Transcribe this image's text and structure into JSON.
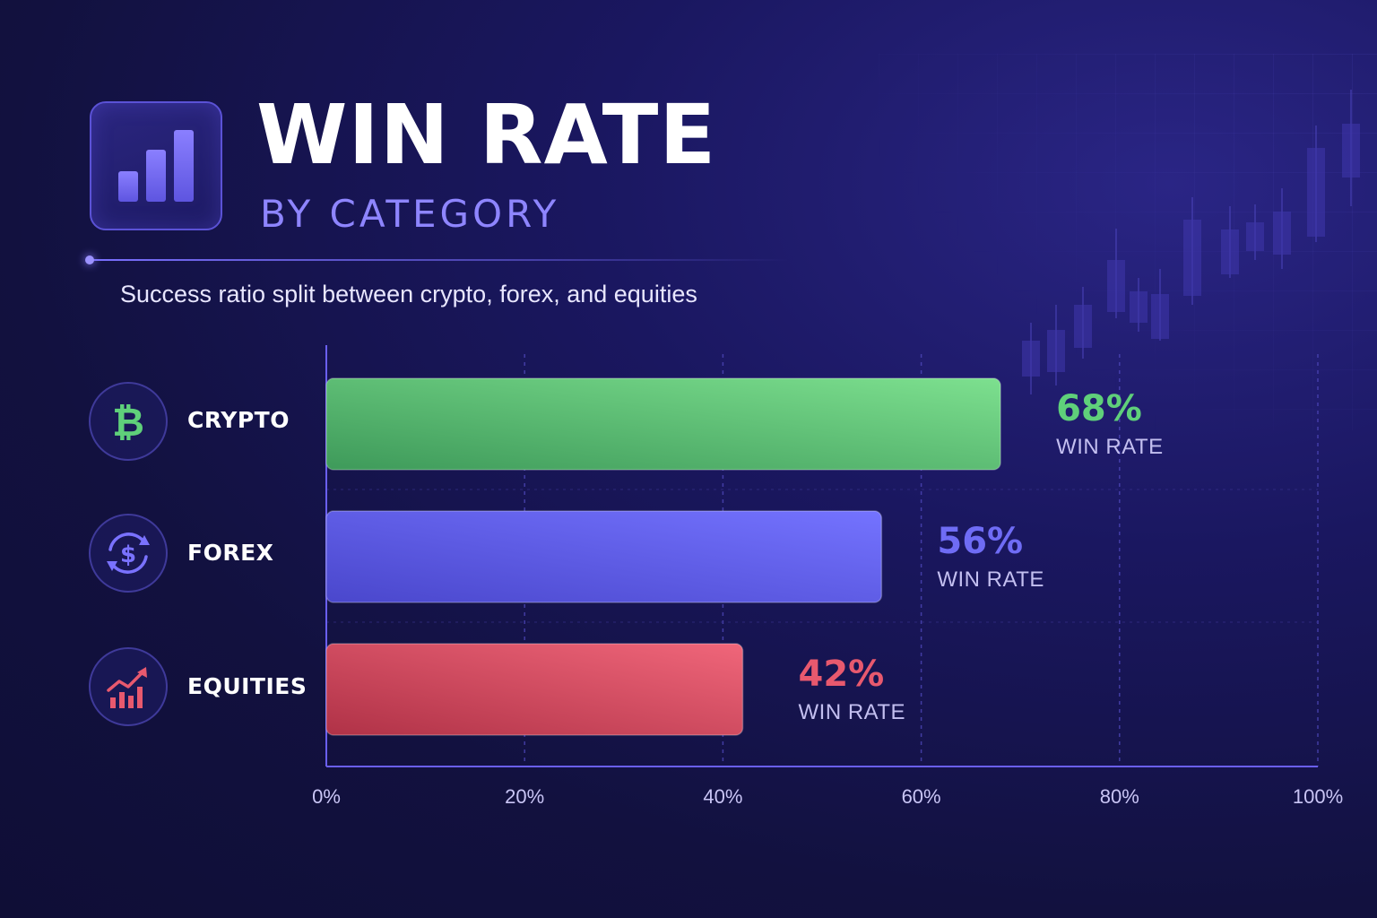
{
  "header": {
    "title": "WIN RATE",
    "subtitle": "BY CATEGORY",
    "description": "Success ratio split between crypto, forex, and equities"
  },
  "categories": [
    {
      "label": "CRYPTO",
      "icon": "bitcoin-icon",
      "color": "#5fd07a"
    },
    {
      "label": "FOREX",
      "icon": "currency-exchange-icon",
      "color": "#6f6cf5"
    },
    {
      "label": "EQUITIES",
      "icon": "stock-growth-icon",
      "color": "#e8596e"
    }
  ],
  "chart_data": {
    "type": "bar",
    "orientation": "horizontal",
    "categories": [
      "CRYPTO",
      "FOREX",
      "EQUITIES"
    ],
    "values": [
      68,
      56,
      42
    ],
    "value_labels": [
      "68%",
      "56%",
      "42%"
    ],
    "value_caption": "WIN RATE",
    "colors": [
      "#5fd07a",
      "#6f6cf5",
      "#e8596e"
    ],
    "xlim": [
      0,
      100
    ],
    "x_ticks": [
      "0%",
      "20%",
      "40%",
      "60%",
      "80%",
      "100%"
    ],
    "grid": true,
    "title": "WIN RATE",
    "subtitle": "BY CATEGORY",
    "xlabel": "",
    "ylabel": ""
  }
}
